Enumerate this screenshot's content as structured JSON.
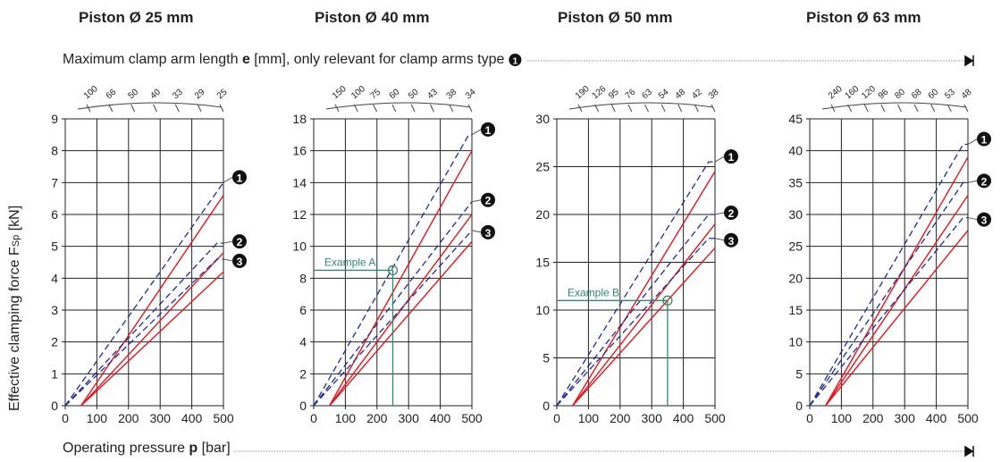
{
  "header": {
    "titles": [
      "Piston Ø 25 mm",
      "Piston Ø 40 mm",
      "Piston Ø 50 mm",
      "Piston Ø 63 mm"
    ],
    "arm_note_pre": "Maximum clamp arm length ",
    "arm_note_bold": "e",
    "arm_note_post": " [mm], only relevant for clamp arms type"
  },
  "axis": {
    "y_label": "Effective clamping force F",
    "y_label_sub": "Sp",
    "y_label_unit": " [kN]",
    "x_label_pre": "Operating pressure ",
    "x_label_bold": "p",
    "x_label_post": " [bar]"
  },
  "colors": {
    "solid": "#e8141b",
    "dashed": "#1f2a9a",
    "example": "#2e8b6a",
    "grid": "#222222"
  },
  "chart_data": [
    {
      "type": "line",
      "title": "Piston Ø 25 mm",
      "xlim": [
        0,
        500
      ],
      "ylim": [
        0,
        9
      ],
      "x_ticks": [
        0,
        100,
        200,
        300,
        400,
        500
      ],
      "y_ticks": [
        0,
        1,
        2,
        3,
        4,
        5,
        6,
        7,
        8,
        9
      ],
      "top_ticks": [
        "100",
        "66",
        "50",
        "40",
        "33",
        "29",
        "25"
      ],
      "series": [
        {
          "name": "❶",
          "dashed": [
            [
              0,
              0
            ],
            [
              500,
              7.0
            ]
          ],
          "solid": [
            [
              50,
              0
            ],
            [
              500,
              6.6
            ]
          ]
        },
        {
          "name": "❷",
          "dashed": [
            [
              0,
              0
            ],
            [
              480,
              5.1
            ],
            [
              500,
              5.1
            ]
          ],
          "solid": [
            [
              50,
              0
            ],
            [
              500,
              4.8
            ]
          ]
        },
        {
          "name": "❸",
          "dashed": [
            [
              0,
              0
            ],
            [
              480,
              4.6
            ],
            [
              500,
              4.6
            ]
          ],
          "solid": [
            [
              50,
              0
            ],
            [
              500,
              4.2
            ]
          ]
        }
      ],
      "example": null
    },
    {
      "type": "line",
      "title": "Piston Ø 40 mm",
      "xlim": [
        0,
        500
      ],
      "ylim": [
        0,
        18
      ],
      "x_ticks": [
        0,
        100,
        200,
        300,
        400,
        500
      ],
      "y_ticks": [
        0,
        2,
        4,
        6,
        8,
        10,
        12,
        14,
        16,
        18
      ],
      "top_ticks": [
        "150",
        "100",
        "75",
        "60",
        "50",
        "43",
        "38",
        "34"
      ],
      "series": [
        {
          "name": "❶",
          "dashed": [
            [
              0,
              0
            ],
            [
              490,
              17.0
            ],
            [
              500,
              17.0
            ]
          ],
          "solid": [
            [
              50,
              0
            ],
            [
              500,
              16.0
            ]
          ]
        },
        {
          "name": "❷",
          "dashed": [
            [
              0,
              0
            ],
            [
              500,
              12.8
            ]
          ],
          "solid": [
            [
              50,
              0
            ],
            [
              500,
              12.0
            ]
          ]
        },
        {
          "name": "❸",
          "dashed": [
            [
              0,
              0
            ],
            [
              500,
              11.0
            ]
          ],
          "solid": [
            [
              50,
              0
            ],
            [
              500,
              10.3
            ]
          ]
        }
      ],
      "example": {
        "label": "Example A",
        "x": 250,
        "y": 8.5
      }
    },
    {
      "type": "line",
      "title": "Piston Ø 50 mm",
      "xlim": [
        0,
        500
      ],
      "ylim": [
        0,
        30
      ],
      "x_ticks": [
        0,
        100,
        200,
        300,
        400,
        500
      ],
      "y_ticks": [
        0,
        5,
        10,
        15,
        20,
        25,
        30
      ],
      "top_ticks": [
        "190",
        "126",
        "95",
        "76",
        "63",
        "54",
        "48",
        "42",
        "38"
      ],
      "series": [
        {
          "name": "❶",
          "dashed": [
            [
              0,
              0
            ],
            [
              480,
              25.5
            ],
            [
              500,
              25.5
            ]
          ],
          "solid": [
            [
              50,
              0
            ],
            [
              500,
              24.5
            ]
          ]
        },
        {
          "name": "❷",
          "dashed": [
            [
              0,
              0
            ],
            [
              480,
              20.0
            ],
            [
              500,
              20.0
            ]
          ],
          "solid": [
            [
              50,
              0
            ],
            [
              500,
              19.0
            ]
          ]
        },
        {
          "name": "❸",
          "dashed": [
            [
              0,
              0
            ],
            [
              480,
              17.5
            ],
            [
              500,
              17.5
            ]
          ],
          "solid": [
            [
              50,
              0
            ],
            [
              500,
              16.5
            ]
          ]
        }
      ],
      "example": {
        "label": "Example B",
        "x": 350,
        "y": 11.0
      }
    },
    {
      "type": "line",
      "title": "Piston Ø 63 mm",
      "xlim": [
        0,
        500
      ],
      "ylim": [
        0,
        45
      ],
      "x_ticks": [
        0,
        100,
        200,
        300,
        400,
        500
      ],
      "y_ticks": [
        0,
        5,
        10,
        15,
        20,
        25,
        30,
        35,
        40,
        45
      ],
      "top_ticks": [
        "240",
        "160",
        "120",
        "96",
        "80",
        "68",
        "60",
        "53",
        "48"
      ],
      "series": [
        {
          "name": "❶",
          "dashed": [
            [
              0,
              0
            ],
            [
              485,
              41.0
            ],
            [
              500,
              41.0
            ]
          ],
          "solid": [
            [
              50,
              0
            ],
            [
              500,
              39.0
            ]
          ]
        },
        {
          "name": "❷",
          "dashed": [
            [
              0,
              0
            ],
            [
              485,
              35.0
            ],
            [
              500,
              35.0
            ]
          ],
          "solid": [
            [
              50,
              0
            ],
            [
              500,
              33.0
            ]
          ]
        },
        {
          "name": "❸",
          "dashed": [
            [
              0,
              0
            ],
            [
              485,
              29.5
            ],
            [
              500,
              29.5
            ]
          ],
          "solid": [
            [
              50,
              0
            ],
            [
              500,
              27.5
            ]
          ]
        }
      ],
      "example": null
    }
  ]
}
